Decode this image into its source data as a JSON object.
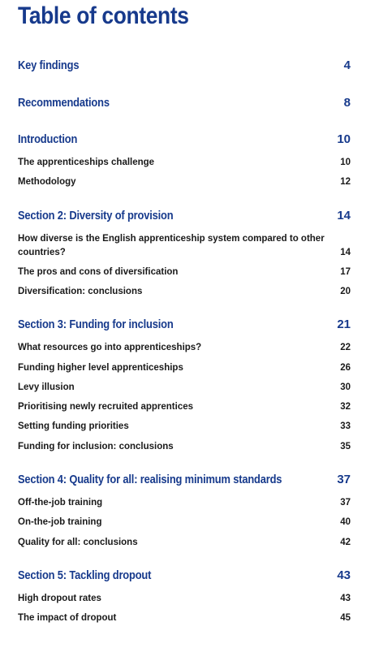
{
  "title": "Table of contents",
  "sections": [
    {
      "label": "Key findings",
      "page": "4",
      "items": []
    },
    {
      "label": "Recommendations",
      "page": "8",
      "items": []
    },
    {
      "label": "Introduction",
      "page": "10",
      "items": [
        {
          "label": "The apprenticeships challenge",
          "page": "10"
        },
        {
          "label": "Methodology",
          "page": "12"
        }
      ]
    },
    {
      "label": "Section 2: Diversity of provision",
      "page": "14",
      "items": [
        {
          "label": "How diverse is the English apprenticeship system compared to other countries?",
          "page": "14"
        },
        {
          "label": "The pros and cons of diversification",
          "page": "17"
        },
        {
          "label": "Diversification: conclusions",
          "page": "20"
        }
      ]
    },
    {
      "label": "Section 3: Funding for inclusion",
      "page": "21",
      "items": [
        {
          "label": "What resources go into apprenticeships?",
          "page": "22"
        },
        {
          "label": "Funding higher level apprenticeships",
          "page": "26"
        },
        {
          "label": "Levy illusion",
          "page": "30"
        },
        {
          "label": "Prioritising newly recruited apprentices",
          "page": "32"
        },
        {
          "label": "Setting funding priorities",
          "page": "33"
        },
        {
          "label": "Funding for inclusion: conclusions",
          "page": "35"
        }
      ]
    },
    {
      "label": "Section 4: Quality for all: realising minimum standards",
      "page": "37",
      "items": [
        {
          "label": "Off-the-job training",
          "page": "37"
        },
        {
          "label": "On-the-job training",
          "page": "40"
        },
        {
          "label": "Quality for all: conclusions",
          "page": "42"
        }
      ]
    },
    {
      "label": "Section 5: Tackling dropout",
      "page": "43",
      "items": [
        {
          "label": "High dropout rates",
          "page": "43"
        },
        {
          "label": "The impact of dropout",
          "page": "45"
        }
      ]
    }
  ]
}
